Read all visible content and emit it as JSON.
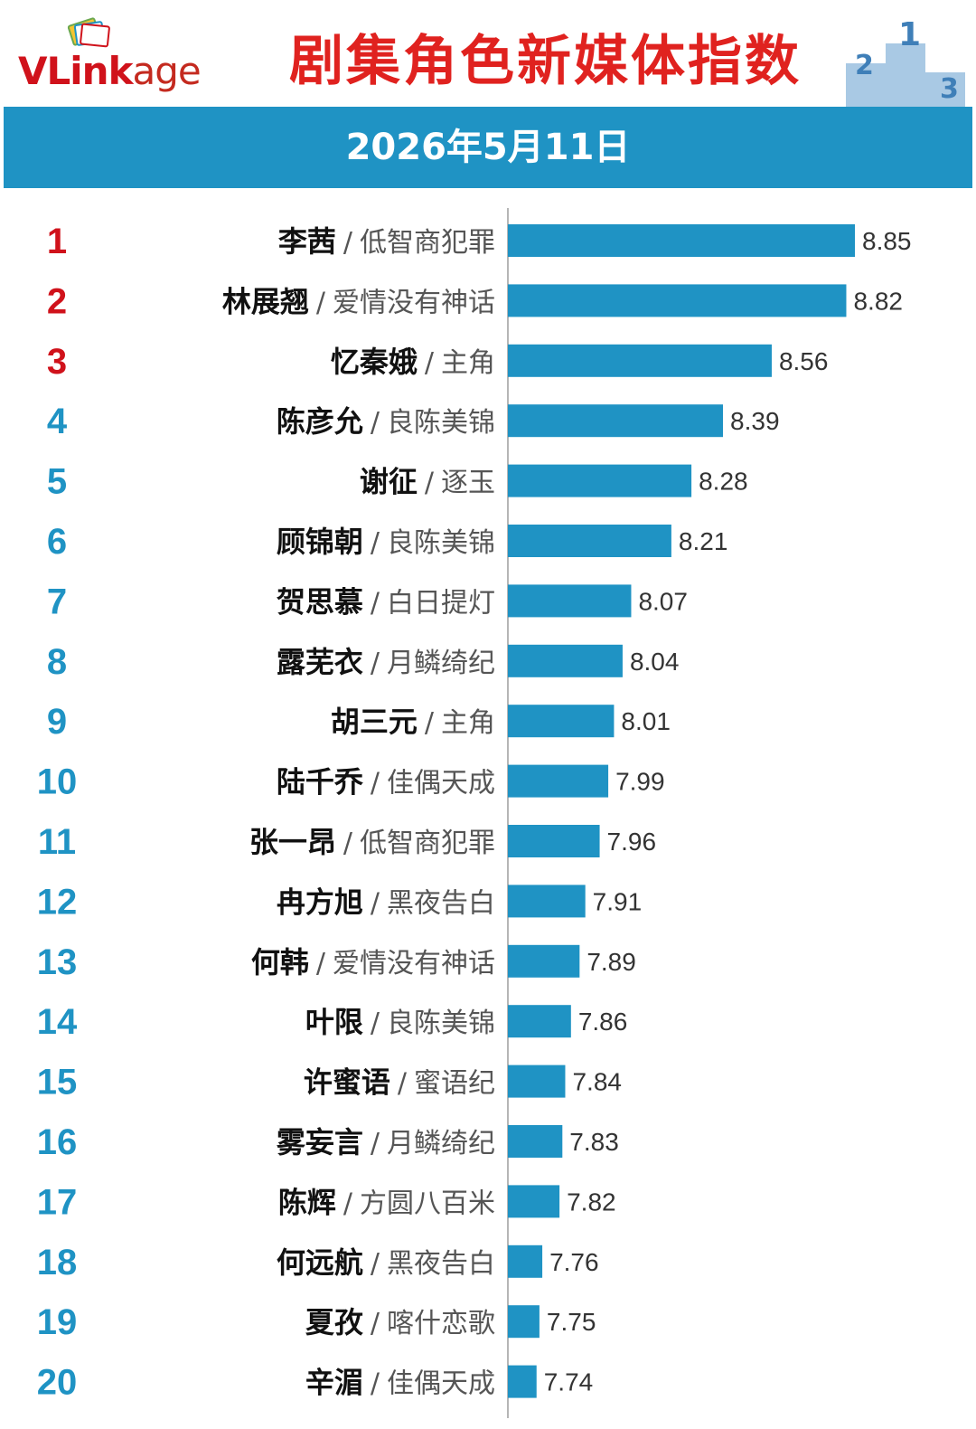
{
  "header": {
    "logo_text": "VLinkage",
    "logo_parts": [
      "V",
      "Link",
      "age"
    ],
    "title": "剧集角色新媒体指数",
    "podium_numbers": [
      "2",
      "1",
      "3"
    ]
  },
  "date": "2026年5月11日",
  "colors": {
    "bar": "#1f93c4",
    "rank_top3": "#d0121b",
    "rank_other": "#1f93c4",
    "title": "#e0221f",
    "band": "#1f93c4"
  },
  "chart_data": {
    "type": "bar",
    "orientation": "horizontal",
    "title": "剧集角色新媒体指数",
    "date": "2026年5月11日",
    "grid": false,
    "rows": [
      {
        "rank": "1",
        "name": "李茜",
        "show": "低智商犯罪",
        "value": 8.85
      },
      {
        "rank": "2",
        "name": "林展翘",
        "show": "爱情没有神话",
        "value": 8.82
      },
      {
        "rank": "3",
        "name": "忆秦娥",
        "show": "主角",
        "value": 8.56
      },
      {
        "rank": "4",
        "name": "陈彦允",
        "show": "良陈美锦",
        "value": 8.39
      },
      {
        "rank": "5",
        "name": "谢征",
        "show": "逐玉",
        "value": 8.28
      },
      {
        "rank": "6",
        "name": "顾锦朝",
        "show": "良陈美锦",
        "value": 8.21
      },
      {
        "rank": "7",
        "name": "贺思慕",
        "show": "白日提灯",
        "value": 8.07
      },
      {
        "rank": "8",
        "name": "露芜衣",
        "show": "月鳞绮纪",
        "value": 8.04
      },
      {
        "rank": "9",
        "name": "胡三元",
        "show": "主角",
        "value": 8.01
      },
      {
        "rank": "10",
        "name": "陆千乔",
        "show": "佳偶天成",
        "value": 7.99
      },
      {
        "rank": "11",
        "name": "张一昂",
        "show": "低智商犯罪",
        "value": 7.96
      },
      {
        "rank": "12",
        "name": "冉方旭",
        "show": "黑夜告白",
        "value": 7.91
      },
      {
        "rank": "13",
        "name": "何韩",
        "show": "爱情没有神话",
        "value": 7.89
      },
      {
        "rank": "14",
        "name": "叶限",
        "show": "良陈美锦",
        "value": 7.86
      },
      {
        "rank": "15",
        "name": "许蜜语",
        "show": "蜜语纪",
        "value": 7.84
      },
      {
        "rank": "16",
        "name": "雾妄言",
        "show": "月鳞绮纪",
        "value": 7.83
      },
      {
        "rank": "17",
        "name": "陈辉",
        "show": "方圆八百米",
        "value": 7.82
      },
      {
        "rank": "18",
        "name": "何远航",
        "show": "黑夜告白",
        "value": 7.76
      },
      {
        "rank": "19",
        "name": "夏孜",
        "show": "喀什恋歌",
        "value": 7.75
      },
      {
        "rank": "20",
        "name": "辛湄",
        "show": "佳偶天成",
        "value": 7.74
      }
    ],
    "xlim": [
      7.64,
      8.85
    ]
  }
}
